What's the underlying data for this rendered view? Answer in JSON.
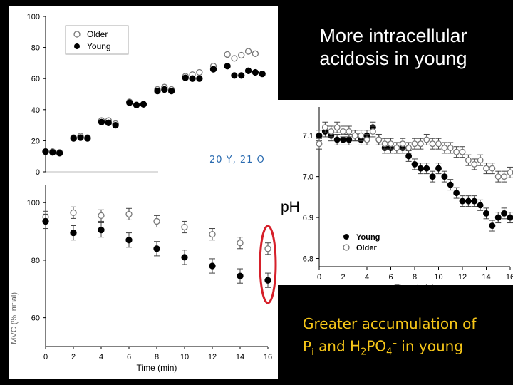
{
  "headline": "More intracellular acidosis in young",
  "subject_count": "20 Y, 21 O",
  "ph_label": "pH",
  "left_y_fragment": "MVC (% initial)",
  "bottom_note": {
    "line1": "Greater accumulation of",
    "p": "P",
    "i": "i",
    "and": " and H",
    "two": "2",
    "po": "PO",
    "four": "4",
    "minus": "–",
    "tail": " in young"
  },
  "highlight_color": "#d6202a",
  "chart_data": [
    {
      "type": "scatter",
      "title": "",
      "xlabel": "",
      "ylabel": "",
      "xlim": [
        0,
        16
      ],
      "ylim": [
        0,
        100
      ],
      "yticks": [
        0,
        20,
        40,
        60,
        80,
        100
      ],
      "legend": {
        "position": "top-left",
        "entries": [
          "Older",
          "Young"
        ]
      },
      "series": [
        {
          "name": "Older",
          "marker": "open-circle",
          "points": [
            [
              0,
              13
            ],
            [
              0.5,
              13
            ],
            [
              1,
              12.5
            ],
            [
              2,
              22
            ],
            [
              2.5,
              23
            ],
            [
              3,
              22
            ],
            [
              4,
              33
            ],
            [
              4.5,
              33
            ],
            [
              5,
              31
            ],
            [
              6,
              45
            ],
            [
              6.5,
              43
            ],
            [
              7,
              43.5
            ],
            [
              8,
              53
            ],
            [
              8.5,
              54.5
            ],
            [
              9,
              53
            ],
            [
              10,
              61.5
            ],
            [
              10.5,
              62.5
            ],
            [
              11,
              64
            ],
            [
              12,
              68
            ],
            [
              13,
              75.5
            ],
            [
              13.5,
              73
            ],
            [
              14,
              75
            ],
            [
              14.5,
              77.5
            ],
            [
              15,
              76
            ]
          ]
        },
        {
          "name": "Young",
          "marker": "filled-circle",
          "points": [
            [
              0,
              13
            ],
            [
              0.5,
              12.5
            ],
            [
              1,
              12
            ],
            [
              2,
              21.5
            ],
            [
              2.5,
              22
            ],
            [
              3,
              21.5
            ],
            [
              4,
              32
            ],
            [
              4.5,
              31.5
            ],
            [
              5,
              30
            ],
            [
              6,
              44.5
            ],
            [
              6.5,
              43
            ],
            [
              7,
              43.5
            ],
            [
              8,
              52
            ],
            [
              8.5,
              53
            ],
            [
              9,
              52
            ],
            [
              10,
              60.5
            ],
            [
              10.5,
              60
            ],
            [
              11,
              60
            ],
            [
              12,
              66
            ],
            [
              13,
              68
            ],
            [
              13.5,
              62
            ],
            [
              14,
              62
            ],
            [
              14.5,
              65
            ],
            [
              15,
              64
            ],
            [
              15.5,
              63
            ]
          ]
        }
      ]
    },
    {
      "type": "scatter",
      "title": "",
      "xlabel": "Time (min)",
      "ylabel": "",
      "xlim": [
        0,
        16
      ],
      "ylim": [
        50,
        106
      ],
      "xticks": [
        0,
        2,
        4,
        6,
        8,
        10,
        12,
        14,
        16
      ],
      "yticks": [
        60,
        80,
        100
      ],
      "series": [
        {
          "name": "Older",
          "marker": "open-circle",
          "error": 2,
          "points": [
            [
              0,
              95
            ],
            [
              2,
              96.5
            ],
            [
              4,
              95.5
            ],
            [
              6,
              96
            ],
            [
              8,
              93.5
            ],
            [
              10,
              91.5
            ],
            [
              12,
              89
            ],
            [
              14,
              86
            ],
            [
              16,
              84
            ]
          ]
        },
        {
          "name": "Young",
          "marker": "filled-circle",
          "error": 2.5,
          "points": [
            [
              0,
              93.5
            ],
            [
              2,
              89.5
            ],
            [
              4,
              90.5
            ],
            [
              6,
              87
            ],
            [
              8,
              84
            ],
            [
              10,
              81
            ],
            [
              12,
              78
            ],
            [
              14,
              74.5
            ],
            [
              16,
              73
            ]
          ]
        }
      ]
    },
    {
      "type": "scatter",
      "title": "",
      "xlabel": "Time (min)",
      "ylabel": "",
      "xlim": [
        0,
        16
      ],
      "ylim": [
        6.78,
        7.17
      ],
      "xticks": [
        0,
        2,
        4,
        6,
        8,
        10,
        12,
        14,
        16
      ],
      "yticks": [
        6.8,
        6.9,
        7.0,
        7.1
      ],
      "legend": {
        "position": "bottom-left",
        "entries": [
          "Young",
          "Older"
        ]
      },
      "series": [
        {
          "name": "Young",
          "marker": "filled-circle",
          "points": [
            [
              0,
              7.1
            ],
            [
              0.5,
              7.11
            ],
            [
              1,
              7.1
            ],
            [
              1.5,
              7.09
            ],
            [
              2,
              7.09
            ],
            [
              2.5,
              7.09
            ],
            [
              3,
              7.1
            ],
            [
              3.5,
              7.09
            ],
            [
              4,
              7.1
            ],
            [
              4.5,
              7.12
            ],
            [
              5,
              7.09
            ],
            [
              5.5,
              7.07
            ],
            [
              6,
              7.07
            ],
            [
              6.5,
              7.07
            ],
            [
              7,
              7.07
            ],
            [
              7.5,
              7.05
            ],
            [
              8,
              7.03
            ],
            [
              8.5,
              7.02
            ],
            [
              9,
              7.02
            ],
            [
              9.5,
              7.0
            ],
            [
              10,
              7.02
            ],
            [
              10.5,
              7.0
            ],
            [
              11,
              6.98
            ],
            [
              11.5,
              6.96
            ],
            [
              12,
              6.94
            ],
            [
              12.5,
              6.94
            ],
            [
              13,
              6.94
            ],
            [
              13.5,
              6.93
            ],
            [
              14,
              6.91
            ],
            [
              14.5,
              6.88
            ],
            [
              15,
              6.9
            ],
            [
              15.5,
              6.91
            ],
            [
              16,
              6.9
            ]
          ]
        },
        {
          "name": "Older",
          "marker": "open-circle",
          "points": [
            [
              0,
              7.08
            ],
            [
              0.5,
              7.12
            ],
            [
              1,
              7.11
            ],
            [
              1.5,
              7.12
            ],
            [
              2,
              7.11
            ],
            [
              2.5,
              7.11
            ],
            [
              3,
              7.1
            ],
            [
              3.5,
              7.1
            ],
            [
              4,
              7.09
            ],
            [
              4.5,
              7.11
            ],
            [
              5,
              7.09
            ],
            [
              5.5,
              7.08
            ],
            [
              6,
              7.08
            ],
            [
              6.5,
              7.07
            ],
            [
              7,
              7.08
            ],
            [
              7.5,
              7.07
            ],
            [
              8,
              7.08
            ],
            [
              8.5,
              7.08
            ],
            [
              9,
              7.09
            ],
            [
              9.5,
              7.08
            ],
            [
              10,
              7.08
            ],
            [
              10.5,
              7.07
            ],
            [
              11,
              7.07
            ],
            [
              11.5,
              7.06
            ],
            [
              12,
              7.06
            ],
            [
              12.5,
              7.04
            ],
            [
              13,
              7.03
            ],
            [
              13.5,
              7.04
            ],
            [
              14,
              7.02
            ],
            [
              14.5,
              7.02
            ],
            [
              15,
              7.0
            ],
            [
              15.5,
              7.0
            ],
            [
              16,
              7.01
            ]
          ]
        }
      ]
    }
  ]
}
